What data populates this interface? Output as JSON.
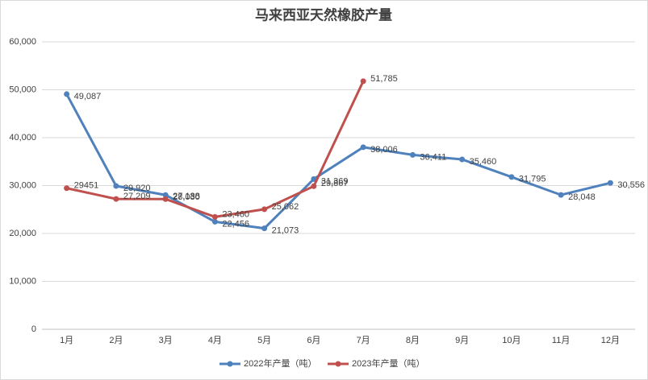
{
  "chart_data": {
    "type": "line",
    "title": "马来西亚天然橡胶产量",
    "categories": [
      "1月",
      "2月",
      "3月",
      "4月",
      "5月",
      "6月",
      "7月",
      "8月",
      "9月",
      "10月",
      "11月",
      "12月"
    ],
    "series": [
      {
        "name": "2022年产量（吨）",
        "color": "#4f81bd",
        "values": [
          49087,
          29920,
          28030,
          22456,
          21073,
          31369,
          38006,
          36411,
          35460,
          31795,
          28048,
          30556
        ],
        "value_labels": [
          "49,087",
          "29,920",
          "28,030",
          "22,456",
          "21,073",
          "31,369",
          "38,006",
          "36,411",
          "35,460",
          "31,795",
          "28,048",
          "30,556"
        ]
      },
      {
        "name": "2023年产量（吨）",
        "color": "#c0504d",
        "values": [
          29451,
          27209,
          27188,
          23460,
          25062,
          29867,
          51785,
          null,
          null,
          null,
          null,
          null
        ],
        "value_labels": [
          "29451",
          "27,209",
          "27,188",
          "23,460",
          "25,062",
          "29,867",
          "51,785",
          null,
          null,
          null,
          null,
          null
        ]
      }
    ],
    "ylim": [
      0,
      60000
    ],
    "yticks": [
      0,
      {
        "value": 10000,
        "label": "10,000"
      },
      {
        "value": 20000,
        "label": "20,000"
      },
      {
        "value": 30000,
        "label": "30,000"
      },
      {
        "value": 40000,
        "label": "40,000"
      },
      {
        "value": 50000,
        "label": "50,000"
      },
      {
        "value": 60000,
        "label": "60,000"
      }
    ],
    "grid": true,
    "legend": "bottom"
  }
}
